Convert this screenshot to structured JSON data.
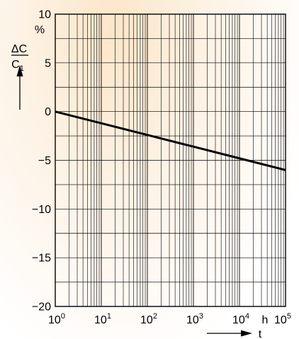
{
  "chart_data": {
    "type": "line",
    "title": "",
    "ylabel_numerator": "ΔC",
    "ylabel_denominator_main": "C",
    "ylabel_denominator_sub": "1",
    "yunit": "%",
    "xlabel": "t",
    "xunit": "h",
    "x_scale": "log",
    "xlim": [
      1,
      100000
    ],
    "ylim": [
      -20,
      10
    ],
    "grid": true,
    "x_ticks": [
      {
        "base": "10",
        "exp": "0"
      },
      {
        "base": "10",
        "exp": "1"
      },
      {
        "base": "10",
        "exp": "2"
      },
      {
        "base": "10",
        "exp": "3"
      },
      {
        "base": "10",
        "exp": "4"
      },
      {
        "base": "10",
        "exp": "5"
      }
    ],
    "y_ticks": [
      "10",
      "5",
      "0",
      "-5",
      "-10",
      "-15",
      "-20"
    ],
    "series": [
      {
        "x": [
          1,
          10,
          100,
          1000,
          10000,
          100000
        ],
        "y": [
          0,
          -1.2,
          -2.4,
          -3.6,
          -4.8,
          -6.0
        ],
        "color": "#000000"
      }
    ]
  }
}
